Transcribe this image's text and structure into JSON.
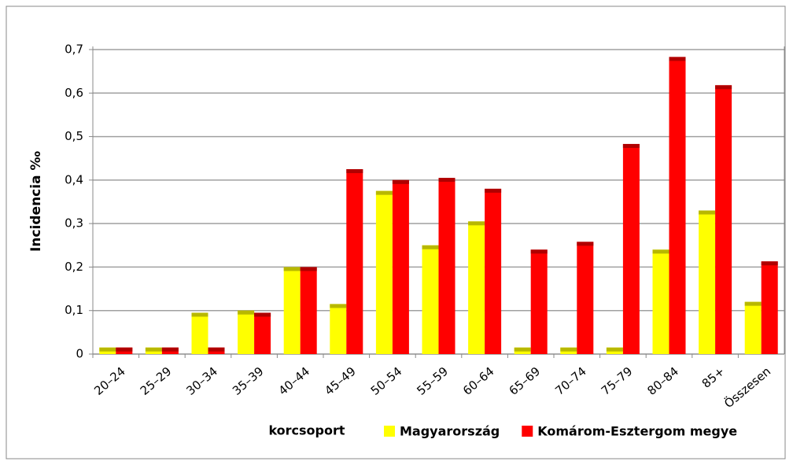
{
  "chart_data": {
    "type": "bar",
    "y_label": "Incidencia ‰",
    "x_label": "korcsoport",
    "categories": [
      "20–24",
      "25–29",
      "30–34",
      "35–39",
      "40–44",
      "45–49",
      "50–54",
      "55–59",
      "60–64",
      "65–69",
      "70–74",
      "75–79",
      "80–84",
      "85+",
      "Összesen"
    ],
    "series": [
      {
        "name": "Magyarország",
        "color": "#ffff00",
        "values": [
          0.015,
          0.015,
          0.095,
          0.1,
          0.2,
          0.115,
          0.375,
          0.25,
          0.305,
          0.015,
          0.015,
          0.015,
          0.24,
          0.33,
          0.12
        ]
      },
      {
        "name": "Komárom-Esztergom megye",
        "color": "#ff0000",
        "values": [
          0.015,
          0.015,
          0.015,
          0.095,
          0.2,
          0.425,
          0.4,
          0.405,
          0.38,
          0.24,
          0.258,
          0.483,
          0.683,
          0.618,
          0.213
        ]
      }
    ],
    "ylim": [
      0,
      0.7
    ],
    "yticks": [
      0,
      {
        "value": 0.1,
        "label": "0,1"
      },
      {
        "value": 0.2,
        "label": "0,2"
      },
      {
        "value": 0.3,
        "label": "0,3"
      },
      {
        "value": 0.4,
        "label": "0,4"
      },
      {
        "value": 0.5,
        "label": "0,5"
      },
      {
        "value": 0.6,
        "label": "0,6"
      },
      {
        "value": 0.7,
        "label": "0,7"
      }
    ],
    "grid": true,
    "legend": "bottom-right"
  }
}
